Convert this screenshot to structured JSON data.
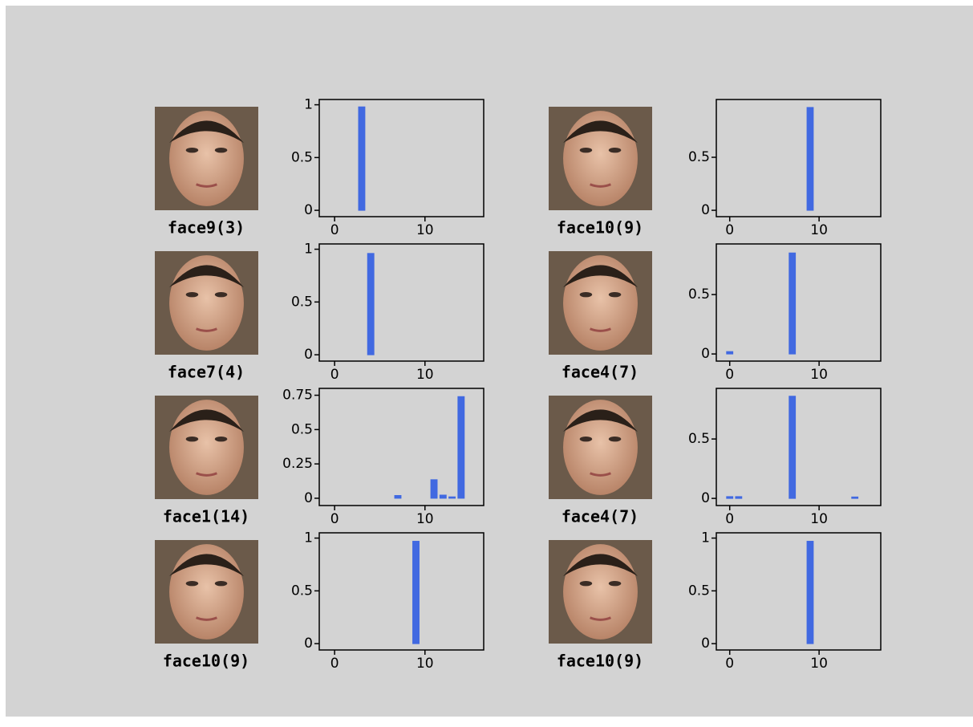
{
  "face_labels": [
    "face9(3)",
    "face7(4)",
    "face1(14)",
    "face10(9)",
    "face10(9)",
    "face4(7)",
    "face4(7)",
    "face10(9)"
  ],
  "chart_data": [
    {
      "type": "bar",
      "color": "#4169e1",
      "x": [
        0,
        1,
        2,
        3,
        4,
        5,
        6,
        7,
        8,
        9,
        10,
        11,
        12,
        13,
        14,
        15
      ],
      "values": [
        0,
        0,
        0,
        0.98,
        0,
        0,
        0,
        0,
        0,
        0,
        0,
        0,
        0,
        0,
        0,
        0
      ],
      "xlim": [
        -1.7,
        16.5
      ],
      "xticks": [
        0,
        10
      ],
      "ylim": [
        -0.06,
        1.05
      ],
      "yticks": [
        0,
        0.5,
        1
      ]
    },
    {
      "type": "bar",
      "color": "#4169e1",
      "x": [
        0,
        1,
        2,
        3,
        4,
        5,
        6,
        7,
        8,
        9,
        10,
        11,
        12,
        13,
        14,
        15
      ],
      "values": [
        0,
        0,
        0,
        0,
        0.96,
        0,
        0,
        0,
        0,
        0,
        0,
        0,
        0,
        0,
        0,
        0
      ],
      "xlim": [
        -1.7,
        16.5
      ],
      "xticks": [
        0,
        10
      ],
      "ylim": [
        -0.06,
        1.05
      ],
      "yticks": [
        0,
        0.5,
        1
      ]
    },
    {
      "type": "bar",
      "color": "#4169e1",
      "x": [
        0,
        1,
        2,
        3,
        4,
        5,
        6,
        7,
        8,
        9,
        10,
        11,
        12,
        13,
        14,
        15
      ],
      "values": [
        0,
        0,
        0,
        0,
        0,
        0,
        0,
        0.02,
        0,
        0,
        0,
        0.135,
        0.023,
        0.01,
        0.74,
        0
      ],
      "xlim": [
        -1.7,
        16.5
      ],
      "xticks": [
        0,
        10
      ],
      "ylim": [
        -0.053,
        0.8
      ],
      "yticks": [
        0,
        0.25,
        0.5,
        0.75
      ]
    },
    {
      "type": "bar",
      "color": "#4169e1",
      "x": [
        0,
        1,
        2,
        3,
        4,
        5,
        6,
        7,
        8,
        9,
        10,
        11,
        12,
        13,
        14,
        15
      ],
      "values": [
        0,
        0,
        0,
        0,
        0,
        0,
        0,
        0,
        0,
        0.97,
        0,
        0,
        0,
        0,
        0,
        0
      ],
      "xlim": [
        -1.7,
        16.5
      ],
      "xticks": [
        0,
        10
      ],
      "ylim": [
        -0.06,
        1.05
      ],
      "yticks": [
        0,
        0.5,
        1
      ]
    },
    {
      "type": "bar",
      "color": "#4169e1",
      "x": [
        0,
        1,
        2,
        3,
        4,
        5,
        6,
        7,
        8,
        9,
        10,
        11,
        12,
        13,
        14,
        15
      ],
      "values": [
        0,
        0,
        0,
        0,
        0,
        0,
        0,
        0,
        0,
        0.97,
        0,
        0,
        0,
        0,
        0,
        0
      ],
      "xlim": [
        -1.5,
        16.9
      ],
      "xticks": [
        0,
        10
      ],
      "ylim": [
        -0.06,
        1.045
      ],
      "yticks": [
        0,
        0.5
      ]
    },
    {
      "type": "bar",
      "color": "#4169e1",
      "x": [
        0,
        1,
        2,
        3,
        4,
        5,
        6,
        7,
        8,
        9,
        10,
        11,
        12,
        13,
        14,
        15
      ],
      "values": [
        0.02,
        0,
        0,
        0,
        0,
        0,
        0,
        0.85,
        0,
        0,
        0,
        0,
        0,
        0,
        0,
        0
      ],
      "xlim": [
        -1.5,
        16.9
      ],
      "xticks": [
        0,
        10
      ],
      "ylim": [
        -0.06,
        0.926
      ],
      "yticks": [
        0,
        0.5
      ]
    },
    {
      "type": "bar",
      "color": "#4169e1",
      "x": [
        0,
        1,
        2,
        3,
        4,
        5,
        6,
        7,
        8,
        9,
        10,
        11,
        12,
        13,
        14,
        15
      ],
      "values": [
        0.015,
        0.015,
        0,
        0,
        0,
        0,
        0,
        0.86,
        0,
        0,
        0,
        0,
        0,
        0,
        0.012,
        0
      ],
      "xlim": [
        -1.5,
        16.9
      ],
      "xticks": [
        0,
        10
      ],
      "ylim": [
        -0.06,
        0.926
      ],
      "yticks": [
        0,
        0.5
      ]
    },
    {
      "type": "bar",
      "color": "#4169e1",
      "x": [
        0,
        1,
        2,
        3,
        4,
        5,
        6,
        7,
        8,
        9,
        10,
        11,
        12,
        13,
        14,
        15
      ],
      "values": [
        0,
        0,
        0,
        0,
        0,
        0,
        0,
        0,
        0,
        0.97,
        0,
        0,
        0,
        0,
        0,
        0
      ],
      "xlim": [
        -1.5,
        16.9
      ],
      "xticks": [
        0,
        10
      ],
      "ylim": [
        -0.06,
        1.05
      ],
      "yticks": [
        0,
        0.5,
        1
      ]
    }
  ]
}
